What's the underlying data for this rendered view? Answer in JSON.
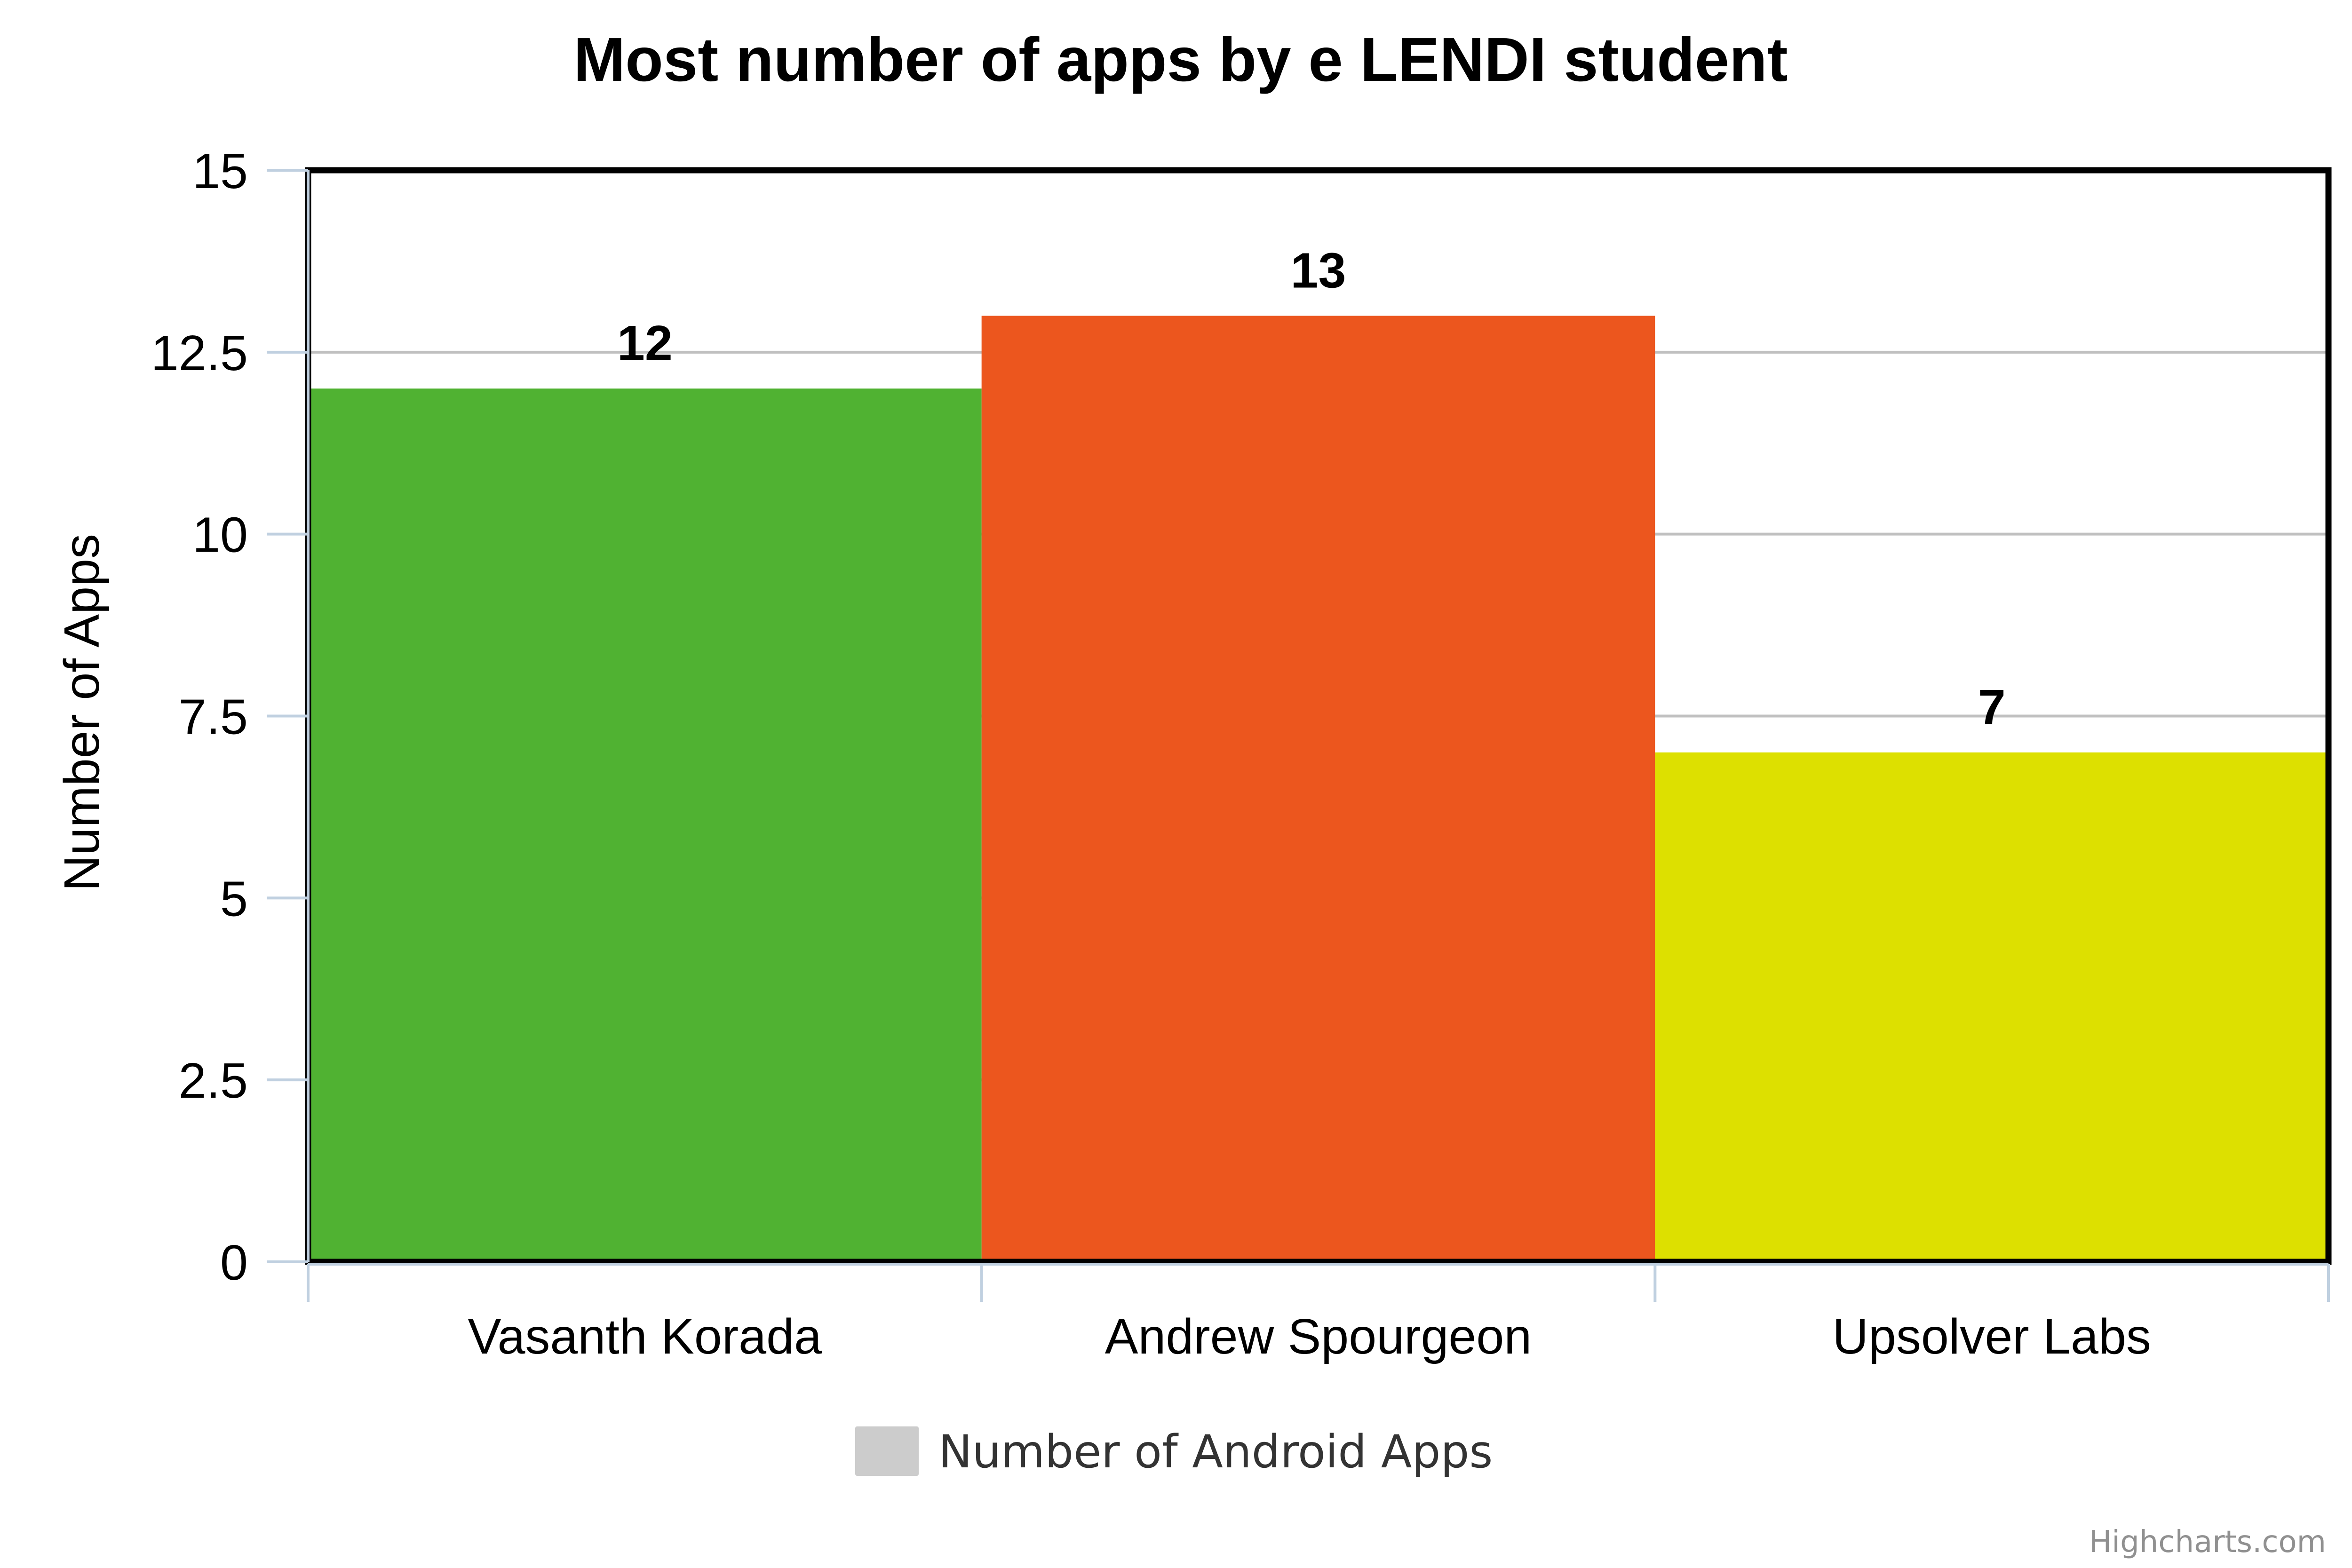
{
  "chart_data": {
    "type": "bar",
    "title": "Most number of apps by e LENDI student",
    "ylabel": "Number of Apps",
    "xlabel": "",
    "categories": [
      "Vasanth Korada",
      "Andrew Spourgeon",
      "Upsolver Labs"
    ],
    "series": [
      {
        "name": "Number of Android Apps",
        "values": [
          12,
          13,
          7
        ],
        "colors": [
          "#50b232",
          "#ec561e",
          "#dde000"
        ]
      }
    ],
    "ylim": [
      0,
      15
    ],
    "yticks": [
      0,
      2.5,
      5,
      7.5,
      10,
      12.5,
      15
    ],
    "ytick_labels": [
      "0",
      "2.5",
      "5",
      "7.5",
      "10",
      "12.5",
      "15"
    ],
    "data_labels": [
      "12",
      "13",
      "7"
    ],
    "grid": true,
    "legend": {
      "position": "bottom-center",
      "label": "Number of Android Apps",
      "swatch_color": "#cccccc"
    },
    "credit": "Highcharts.com"
  }
}
